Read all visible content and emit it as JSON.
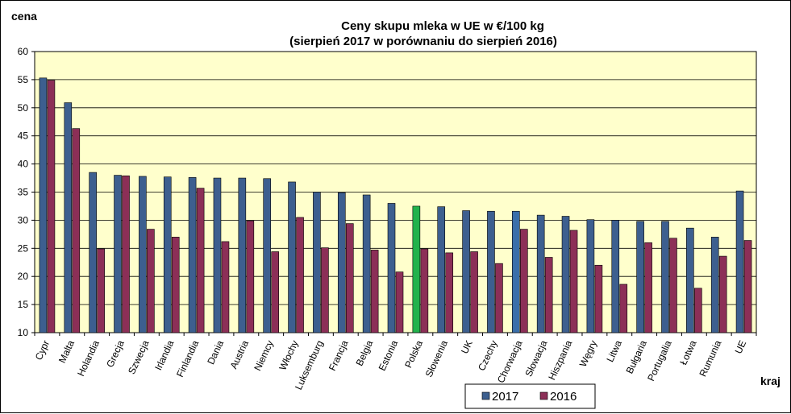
{
  "chart_data": {
    "type": "bar",
    "title": "Ceny skupu mleka  w UE w €/100 kg",
    "subtitle": "(sierpień 2017 w porównaniu do sierpień 2016)",
    "xlabel": "kraj",
    "ylabel": "cena",
    "ylim": [
      10,
      60
    ],
    "yticks": [
      10,
      15,
      20,
      25,
      30,
      35,
      40,
      45,
      50,
      55,
      60
    ],
    "grid": true,
    "legend_position": "bottom",
    "plot_background": "#ffffcc",
    "categories": [
      "Cypr",
      "Malta",
      "Holandia",
      "Grecja",
      "Szwecja",
      "Irlandia",
      "Finlandia",
      "Dania",
      "Austria",
      "Niemcy",
      "Włochy",
      "Luksemburg",
      "Francja",
      "Belgia",
      "Estonia",
      "Polska",
      "Słowenia",
      "UK",
      "Czechy",
      "Chorwacja",
      "Słowacja",
      "Hiszpania",
      "Węgry",
      "Litwa",
      "Bułgaria",
      "Portugalia",
      "Łotwa",
      "Rumunia",
      "UE"
    ],
    "series": [
      {
        "name": "2017",
        "color": "#3d5f8f",
        "values": [
          55.3,
          50.9,
          38.5,
          38.0,
          37.8,
          37.7,
          37.6,
          37.5,
          37.5,
          37.4,
          36.8,
          35.0,
          34.9,
          34.5,
          33.0,
          32.5,
          32.4,
          31.7,
          31.6,
          31.6,
          30.9,
          30.7,
          30.1,
          30.0,
          29.8,
          29.8,
          28.6,
          27.0,
          35.2
        ]
      },
      {
        "name": "2016",
        "color": "#8c2f57",
        "values": [
          54.9,
          46.3,
          24.9,
          37.9,
          28.4,
          27.0,
          35.7,
          26.2,
          29.9,
          24.4,
          30.5,
          25.1,
          29.4,
          24.7,
          20.8,
          24.9,
          24.2,
          24.4,
          22.3,
          28.4,
          23.4,
          28.2,
          22.0,
          18.6,
          26.0,
          26.8,
          17.9,
          23.6,
          26.4
        ]
      }
    ],
    "highlight_colors": {
      "Polska": "#22b24c",
      "Chorwacja": "#3a6faa"
    }
  }
}
